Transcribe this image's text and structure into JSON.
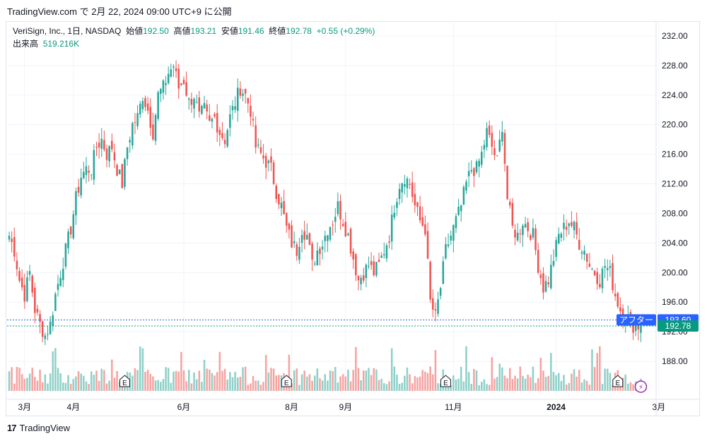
{
  "header": {
    "text": "TradingView.com で 2月 22, 2024 09:00 UTC+9 に公開"
  },
  "legend": {
    "symbol": "VeriSign, Inc., 1日, NASDAQ",
    "open_label": "始値",
    "open": "192.50",
    "high_label": "高値",
    "high": "193.21",
    "low_label": "安値",
    "low": "191.46",
    "close_label": "終値",
    "close": "192.78",
    "change": "+0.55 (+0.29%)",
    "volume_label": "出来高",
    "volume": "519.216K"
  },
  "footer": {
    "brand": "TradingView",
    "logo": "17"
  },
  "colors": {
    "up": "#26a69a",
    "down": "#ef5350",
    "up_vol": "#8fd0c8",
    "down_vol": "#f5a3a1",
    "after_hours": "#2962ff",
    "last_price": "#089981",
    "grid": "#f0f3fa"
  },
  "chart_data": {
    "type": "candlestick",
    "symbol": "VRSN",
    "ylim": [
      184,
      234
    ],
    "y_ticks": [
      "232.00",
      "228.00",
      "224.00",
      "220.00",
      "216.00",
      "212.00",
      "208.00",
      "204.00",
      "200.00",
      "196.00",
      "192.00",
      "188.00"
    ],
    "x_ticks": [
      {
        "label": "3月",
        "index": 6
      },
      {
        "label": "4月",
        "index": 25
      },
      {
        "label": "6月",
        "index": 68
      },
      {
        "label": "8月",
        "index": 110
      },
      {
        "label": "9月",
        "index": 131
      },
      {
        "label": "11月",
        "index": 173
      },
      {
        "label": "2024",
        "index": 213
      },
      {
        "label": "3月",
        "index": 253
      }
    ],
    "earnings_markers": [
      {
        "label": "E",
        "index": 45
      },
      {
        "label": "E",
        "index": 108
      },
      {
        "label": "E",
        "index": 170
      },
      {
        "label": "E",
        "index": 237
      }
    ],
    "dividend_marker": {
      "label": "⚡",
      "index": 246
    },
    "after_hours": {
      "label": "アフター",
      "value": "193.60",
      "price": 193.6
    },
    "last_price": {
      "value": "192.78",
      "price": 192.78
    },
    "anchors": [
      [
        0,
        205
      ],
      [
        2,
        203
      ],
      [
        4,
        199
      ],
      [
        6,
        197
      ],
      [
        8,
        200
      ],
      [
        10,
        195
      ],
      [
        12,
        193
      ],
      [
        14,
        191.5
      ],
      [
        16,
        193
      ],
      [
        18,
        197
      ],
      [
        20,
        200
      ],
      [
        22,
        203
      ],
      [
        24,
        206
      ],
      [
        26,
        210
      ],
      [
        28,
        213
      ],
      [
        30,
        214
      ],
      [
        32,
        214
      ],
      [
        34,
        217
      ],
      [
        36,
        218
      ],
      [
        38,
        216
      ],
      [
        40,
        217
      ],
      [
        42,
        214
      ],
      [
        44,
        212
      ],
      [
        46,
        217
      ],
      [
        48,
        220
      ],
      [
        50,
        221
      ],
      [
        52,
        224
      ],
      [
        54,
        222
      ],
      [
        56,
        219
      ],
      [
        58,
        224
      ],
      [
        60,
        225
      ],
      [
        62,
        227
      ],
      [
        64,
        228
      ],
      [
        66,
        225
      ],
      [
        68,
        226
      ],
      [
        70,
        223
      ],
      [
        72,
        224
      ],
      [
        74,
        221
      ],
      [
        76,
        222
      ],
      [
        78,
        220
      ],
      [
        80,
        221
      ],
      [
        82,
        219
      ],
      [
        84,
        218
      ],
      [
        86,
        221
      ],
      [
        88,
        223
      ],
      [
        90,
        225
      ],
      [
        92,
        224
      ],
      [
        94,
        222
      ],
      [
        96,
        217
      ],
      [
        98,
        216
      ],
      [
        100,
        215
      ],
      [
        102,
        214
      ],
      [
        104,
        211
      ],
      [
        106,
        209
      ],
      [
        108,
        206
      ],
      [
        110,
        204
      ],
      [
        112,
        203
      ],
      [
        114,
        206
      ],
      [
        116,
        205
      ],
      [
        118,
        201
      ],
      [
        120,
        203
      ],
      [
        122,
        204
      ],
      [
        124,
        206
      ],
      [
        126,
        207
      ],
      [
        128,
        209
      ],
      [
        130,
        207
      ],
      [
        132,
        205
      ],
      [
        134,
        202
      ],
      [
        136,
        199
      ],
      [
        138,
        200
      ],
      [
        140,
        201
      ],
      [
        142,
        200
      ],
      [
        144,
        201
      ],
      [
        146,
        203
      ],
      [
        148,
        205
      ],
      [
        150,
        209
      ],
      [
        152,
        212
      ],
      [
        154,
        213
      ],
      [
        156,
        212
      ],
      [
        158,
        209
      ],
      [
        160,
        207
      ],
      [
        162,
        206
      ],
      [
        164,
        196
      ],
      [
        166,
        194
      ],
      [
        168,
        198
      ],
      [
        170,
        203
      ],
      [
        172,
        205
      ],
      [
        174,
        207
      ],
      [
        176,
        209
      ],
      [
        178,
        212
      ],
      [
        180,
        214
      ],
      [
        182,
        214
      ],
      [
        184,
        216
      ],
      [
        186,
        219
      ],
      [
        188,
        217
      ],
      [
        190,
        215
      ],
      [
        192,
        220
      ],
      [
        194,
        210
      ],
      [
        196,
        206
      ],
      [
        198,
        205
      ],
      [
        200,
        207
      ],
      [
        202,
        206
      ],
      [
        204,
        205
      ],
      [
        206,
        201
      ],
      [
        208,
        198
      ],
      [
        210,
        199
      ],
      [
        212,
        202
      ],
      [
        214,
        205
      ],
      [
        216,
        206
      ],
      [
        218,
        207
      ],
      [
        220,
        206
      ],
      [
        222,
        204
      ],
      [
        224,
        203
      ],
      [
        226,
        201
      ],
      [
        228,
        200
      ],
      [
        230,
        199
      ],
      [
        232,
        201
      ],
      [
        234,
        200
      ],
      [
        236,
        197
      ],
      [
        238,
        195
      ],
      [
        240,
        194
      ],
      [
        242,
        193
      ],
      [
        244,
        192.8
      ],
      [
        246,
        192.78
      ]
    ]
  }
}
